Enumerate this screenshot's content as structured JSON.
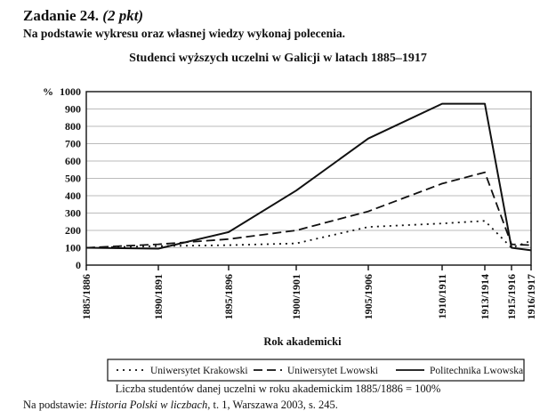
{
  "header": {
    "task_label": "Zadanie 24.",
    "points": "(2 pkt)",
    "instruction": "Na podstawie wykresu oraz własnej wiedzy wykonaj polecenia."
  },
  "chart_data": {
    "type": "line",
    "title": "Studenci wyższych uczelni w Galicji w latach 1885–1917",
    "xlabel": "Rok akademicki",
    "ylabel": "%",
    "ylim": [
      0,
      1000
    ],
    "yticks": [
      0,
      100,
      200,
      300,
      400,
      500,
      600,
      700,
      800,
      900,
      1000
    ],
    "categories": [
      "1885/1886",
      "1890/1891",
      "1895/1896",
      "1900/1901",
      "1905/1906",
      "1910/1911",
      "1913/1914",
      "1915/1916",
      "1916/1917"
    ],
    "series": [
      {
        "name": "Uniwersytet Krakowski",
        "values": [
          100,
          110,
          115,
          125,
          220,
          240,
          255,
          100,
          140
        ]
      },
      {
        "name": "Uniwersytet Lwowski",
        "values": [
          100,
          120,
          150,
          200,
          310,
          470,
          535,
          120,
          115
        ]
      },
      {
        "name": "Politechnika Lwowska",
        "values": [
          100,
          95,
          190,
          430,
          730,
          930,
          930,
          100,
          85
        ]
      }
    ],
    "grid": "horizontal",
    "legend_position": "bottom",
    "series_dash": [
      "2,5",
      "10,5",
      ""
    ],
    "line_color": "#111111",
    "grid_color": "#bbbbbb"
  },
  "note": "Liczba studentów danej uczelni w roku akademickim 1885/1886 = 100%",
  "source": {
    "prefix": "Na podstawie: ",
    "title": "Historia Polski w liczbach",
    "rest": ", t. 1, Warszawa 2003, s. 245."
  }
}
